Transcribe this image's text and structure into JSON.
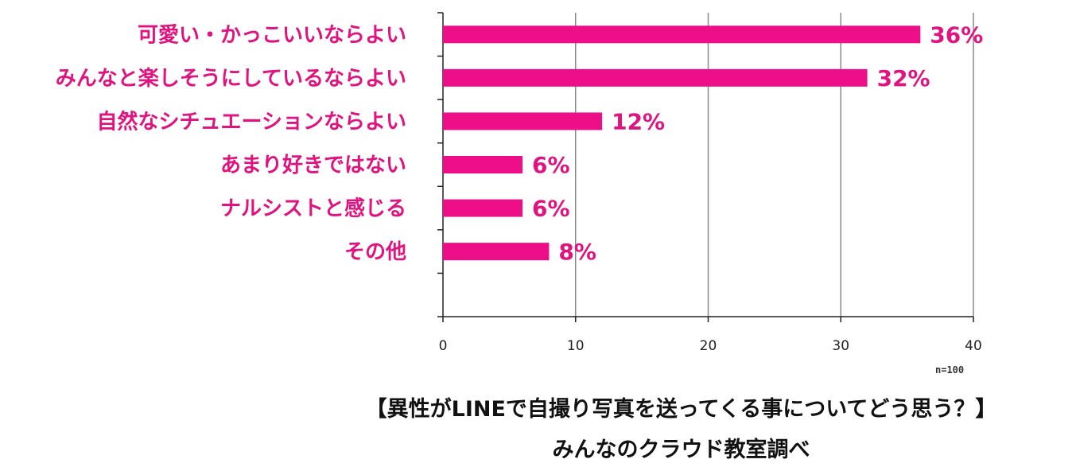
{
  "chart_data": {
    "type": "bar",
    "orientation": "horizontal",
    "categories": [
      "可愛い・かっこいいならよい",
      "みんなと楽しそうにしているならよい",
      "自然なシチュエーションならよい",
      "あまり好きではない",
      "ナルシストと感じる",
      "その他"
    ],
    "values": [
      36,
      32,
      12,
      6,
      6,
      8
    ],
    "value_labels": [
      "36%",
      "32%",
      "12%",
      "6%",
      "6%",
      "8%"
    ],
    "xticks": [
      "0",
      "10",
      "20",
      "30",
      "40"
    ],
    "xlim": [
      0,
      40
    ],
    "grid": true,
    "bar_color": "#ee0f88",
    "label_color": "#e0137f",
    "title": "【異性がLINEで自撮り写真を送ってくる事についてどう思う？】",
    "subtitle": "みんなのクラウド教室調べ",
    "sample_note": "n=100"
  }
}
